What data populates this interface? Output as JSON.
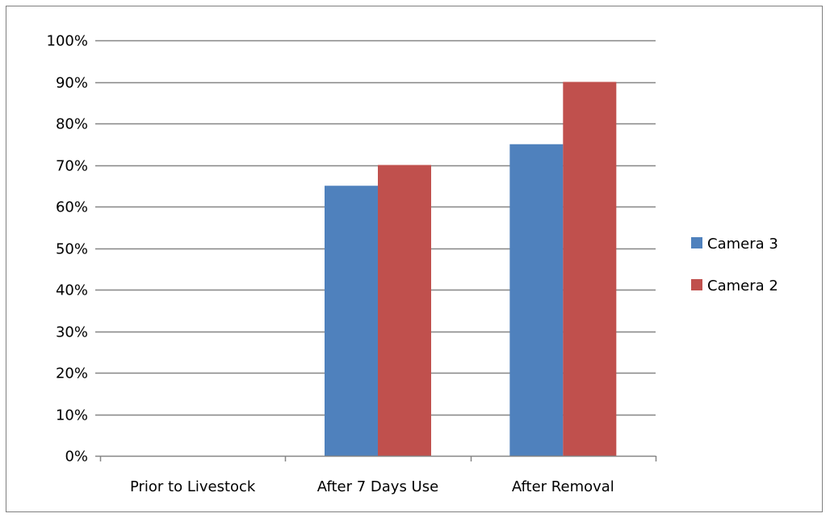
{
  "chart_data": {
    "type": "bar",
    "categories": [
      "Prior to Livestock",
      "After 7 Days Use",
      "After Removal"
    ],
    "series": [
      {
        "name": "Camera 3",
        "color": "#4f81bd",
        "values": [
          0,
          65,
          75
        ]
      },
      {
        "name": "Camera 2",
        "color": "#c0504d",
        "values": [
          0,
          70,
          90
        ]
      }
    ],
    "title": "",
    "xlabel": "",
    "ylabel": "",
    "ylim": [
      0,
      100
    ],
    "y_ticks": [
      0,
      10,
      20,
      30,
      40,
      50,
      60,
      70,
      80,
      90,
      100
    ],
    "y_tick_labels": [
      "0%",
      "10%",
      "20%",
      "30%",
      "40%",
      "50%",
      "60%",
      "70%",
      "80%",
      "90%",
      "100%"
    ],
    "grid": "horizontal",
    "gridline_color": "#868686",
    "legend_position": "right"
  }
}
